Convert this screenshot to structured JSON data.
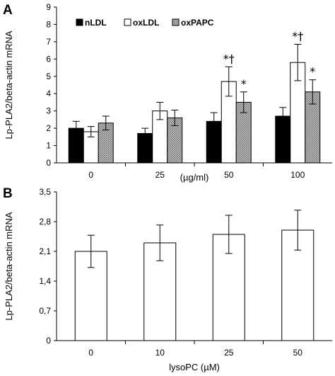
{
  "figure": {
    "panel_a_letter": "A",
    "panel_b_letter": "B"
  },
  "chart_data": [
    {
      "type": "bar",
      "panel": "A",
      "categories": [
        "0",
        "25",
        "50",
        "100"
      ],
      "xlabel": "(µg/ml)",
      "ylabel": "Lp-PLA2/beta-actin mRNA",
      "ylim": [
        0,
        9
      ],
      "yticks": [
        "0",
        "1",
        "2",
        "3",
        "4",
        "5",
        "6",
        "7",
        "8",
        "9"
      ],
      "grid": false,
      "legend_position": "top-left",
      "series": [
        {
          "name": "nLDL",
          "fill": "#000000",
          "pattern": "solid",
          "values": [
            2.0,
            1.7,
            2.4,
            2.7
          ],
          "errors": [
            0.4,
            0.3,
            0.5,
            0.5
          ],
          "annotations": [
            "",
            "",
            "",
            ""
          ]
        },
        {
          "name": "oxLDL",
          "fill": "#ffffff",
          "pattern": "solid",
          "values": [
            1.8,
            3.0,
            4.7,
            5.8
          ],
          "errors": [
            0.3,
            0.5,
            0.85,
            1.05
          ],
          "annotations": [
            "",
            "",
            "*†",
            "*†"
          ]
        },
        {
          "name": "oxPAPC",
          "fill": "#9a9a9a",
          "pattern": "dotted",
          "values": [
            2.3,
            2.6,
            3.5,
            4.1
          ],
          "errors": [
            0.4,
            0.45,
            0.6,
            0.7
          ],
          "annotations": [
            "",
            "",
            "*",
            "*"
          ]
        }
      ]
    },
    {
      "type": "bar",
      "panel": "B",
      "categories": [
        "0",
        "10",
        "25",
        "50"
      ],
      "xlabel": "lysoPC (µM)",
      "ylabel": "Lp-PLA2/beta-actin mRNA",
      "ylim": [
        0,
        3.5
      ],
      "yticks": [
        "0",
        "0,7",
        "1,4",
        "2,1",
        "2,8",
        "3,5"
      ],
      "grid": false,
      "series": [
        {
          "fill": "#ffffff",
          "values": [
            2.1,
            2.3,
            2.5,
            2.6
          ],
          "errors": [
            0.38,
            0.42,
            0.45,
            0.47
          ]
        }
      ]
    }
  ]
}
